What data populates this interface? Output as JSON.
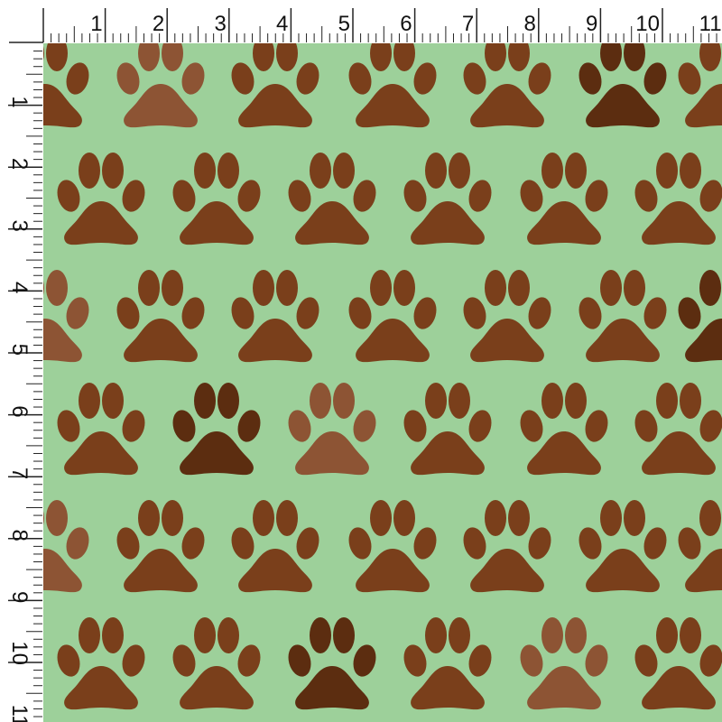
{
  "ruler": {
    "unit_labels": [
      "1",
      "2",
      "3",
      "4",
      "5",
      "6",
      "7",
      "8",
      "9",
      "10",
      "11"
    ],
    "subdivisions_per_unit": 8
  },
  "fabric": {
    "pattern": "paw-print",
    "colors": {
      "background": "#9dd09a",
      "paw": "#7a3f1b",
      "paw_light": "#8d5434",
      "paw_dark": "#5c2d10",
      "ruler_ink": "#222222"
    }
  }
}
